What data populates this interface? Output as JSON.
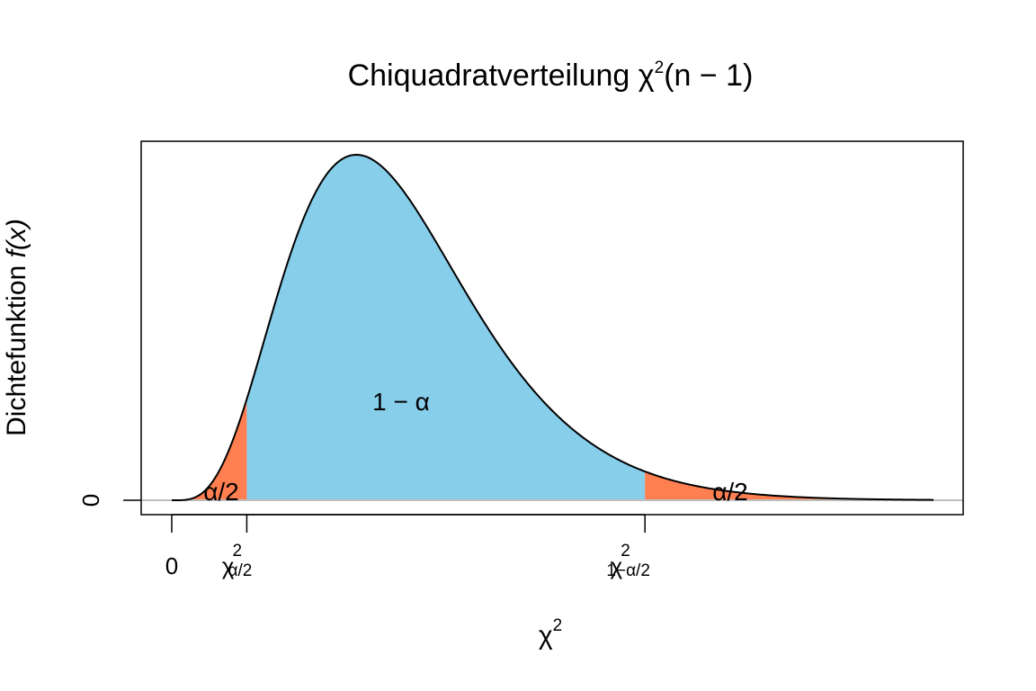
{
  "chart_data": {
    "type": "area",
    "title": {
      "base": "Chiquadratverteilung χ",
      "sup": "2",
      "rest": "(n − 1)"
    },
    "xlabel": {
      "base": "χ",
      "sup": "2"
    },
    "ylabel": {
      "base": "Dichtefunktion ",
      "italic": "f(x)"
    },
    "distribution": "chi-squared",
    "degrees_of_freedom": 10,
    "xlim": [
      0,
      33
    ],
    "y_ticks": [
      {
        "value": 0,
        "label": "0"
      }
    ],
    "x_ticks": [
      {
        "value": 0,
        "base": "0",
        "sup": "",
        "sub": ""
      },
      {
        "value": 3.25,
        "base": "χ",
        "sup": "2",
        "sub": "α/2"
      },
      {
        "value": 20.5,
        "base": "χ",
        "sup": "2",
        "sub": "1−α/2"
      }
    ],
    "regions": [
      {
        "name": "lower-tail",
        "from": 0,
        "to": 3.25,
        "color": "#FF7F50",
        "label": "α/2"
      },
      {
        "name": "center",
        "from": 3.25,
        "to": 20.5,
        "color": "#87CEEB",
        "label": "1 − α"
      },
      {
        "name": "upper-tail",
        "from": 20.5,
        "to": 33,
        "color": "#FF7F50",
        "label": "α/2"
      }
    ],
    "baseline_color": "#BEBEBE",
    "grid": false,
    "legend": "none"
  }
}
